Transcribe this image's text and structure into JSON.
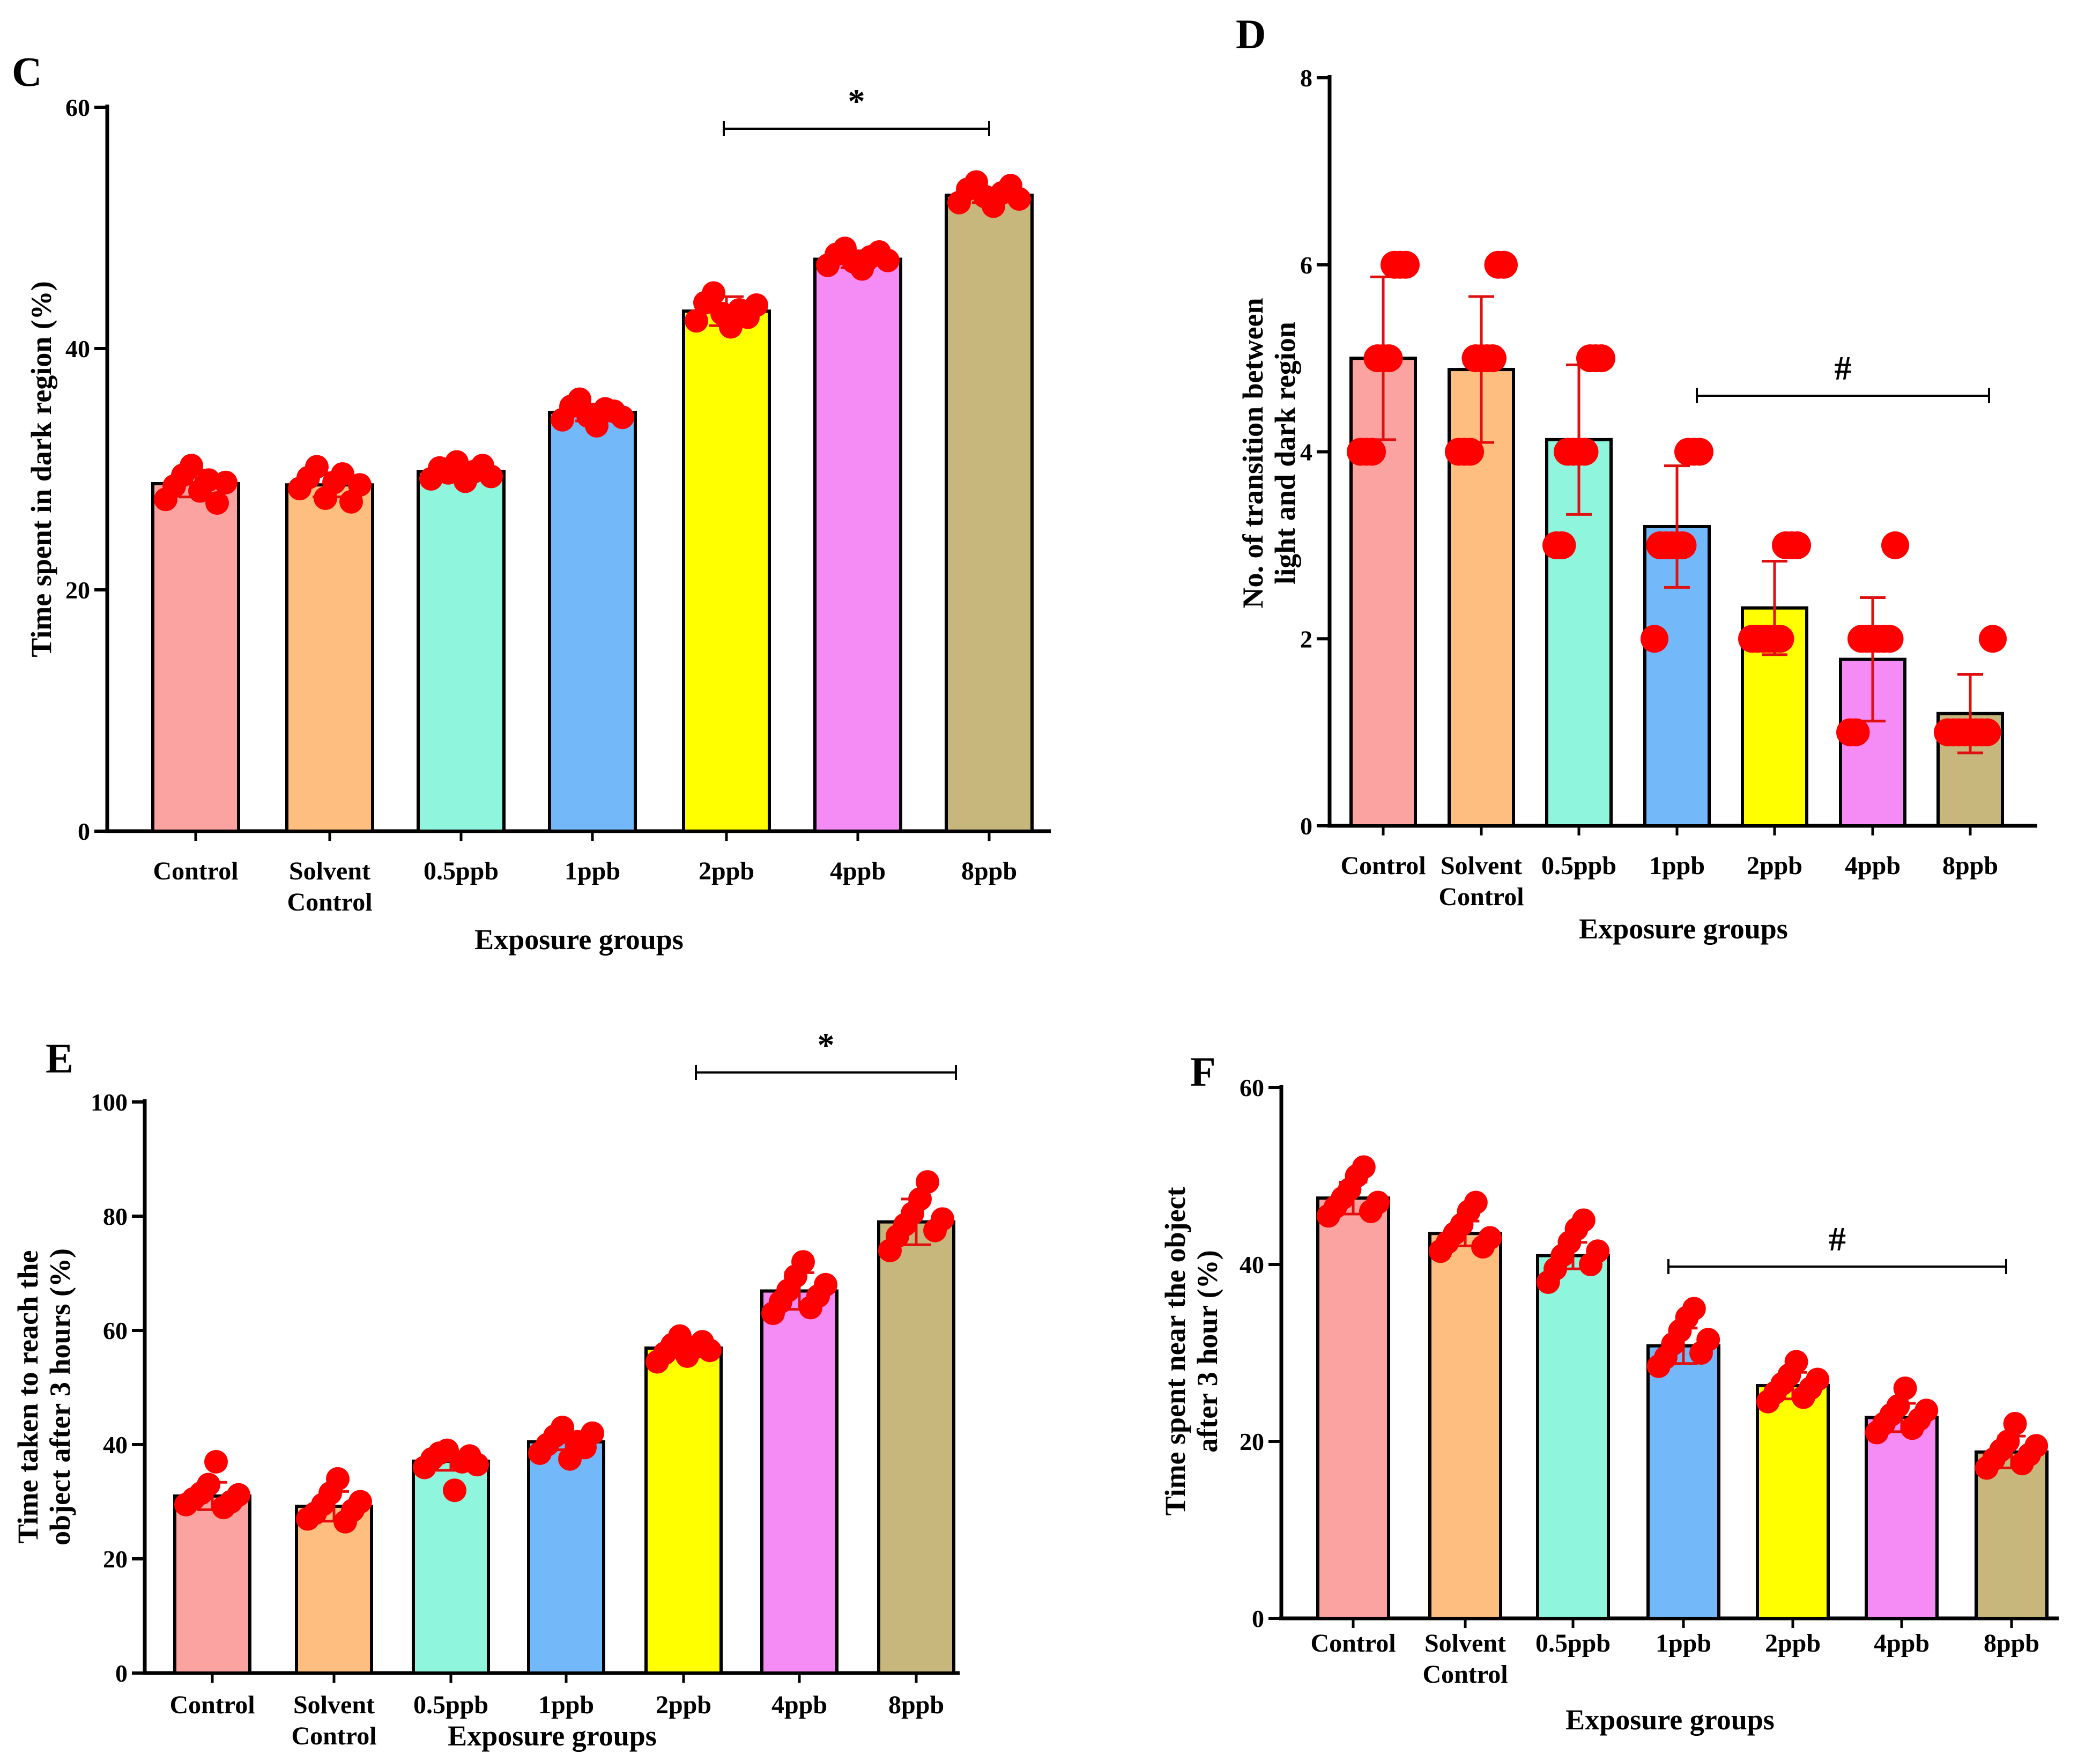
{
  "chart_data": [
    {
      "panel": "C",
      "type": "bar",
      "xlabel": "Exposure groups",
      "ylabel": "Time spent in dark region (%)",
      "categories": [
        [
          "Control"
        ],
        [
          "Solvent",
          "Control"
        ],
        [
          "0.5ppb"
        ],
        [
          "1ppb"
        ],
        [
          "2ppb"
        ],
        [
          "4ppb"
        ],
        [
          "8ppb"
        ]
      ],
      "values": [
        28.8,
        28.7,
        29.8,
        34.7,
        43.1,
        47.4,
        52.7
      ],
      "errors": [
        1.1,
        1.0,
        0.6,
        0.7,
        1.2,
        0.7,
        0.6
      ],
      "points": [
        [
          27.5,
          28.6,
          29.5,
          30.3,
          28.2,
          29.1,
          27.2,
          28.9
        ],
        [
          28.4,
          29.3,
          30.2,
          27.6,
          28.9,
          29.6,
          27.3,
          28.7
        ],
        [
          29.2,
          30.1,
          29.7,
          30.6,
          29.0,
          29.8,
          30.3,
          29.4
        ],
        [
          34.1,
          35.2,
          35.8,
          34.4,
          33.6,
          35.0,
          34.8,
          34.3
        ],
        [
          42.3,
          43.8,
          44.6,
          42.9,
          41.8,
          43.2,
          42.6,
          43.6
        ],
        [
          46.9,
          47.8,
          48.3,
          47.2,
          46.6,
          47.6,
          48.0,
          47.3
        ],
        [
          52.1,
          53.2,
          53.8,
          52.6,
          51.8,
          52.9,
          53.5,
          52.4
        ]
      ],
      "colors": [
        "#FBA3A0",
        "#FDBE80",
        "#8FF5DD",
        "#73B9FA",
        "#FFFF00",
        "#F58CF5",
        "#C7B77C"
      ],
      "yticks": [
        0,
        20,
        40,
        60
      ],
      "ylim": [
        0,
        60
      ],
      "significance": {
        "from": 4,
        "to": 6,
        "symbol": "*"
      }
    },
    {
      "panel": "D",
      "type": "bar",
      "xlabel": "Exposure groups",
      "ylabel": [
        "No. of transition between",
        "light and dark region"
      ],
      "categories": [
        [
          "Control"
        ],
        [
          "Solvent",
          "Control"
        ],
        [
          "0.5ppb"
        ],
        [
          "1ppb"
        ],
        [
          "2ppb"
        ],
        [
          "4ppb"
        ],
        [
          "8ppb"
        ]
      ],
      "values": [
        5.0,
        4.88,
        4.13,
        3.2,
        2.33,
        1.78,
        1.2
      ],
      "errors": [
        0.87,
        0.78,
        0.8,
        0.65,
        0.5,
        0.66,
        0.42
      ],
      "points": [
        [
          4,
          4,
          4,
          5,
          5,
          5,
          6,
          6,
          6
        ],
        [
          4,
          4,
          4,
          5,
          5,
          5,
          5,
          6,
          6
        ],
        [
          3,
          3,
          4,
          4,
          4,
          4,
          5,
          5,
          5
        ],
        [
          2,
          3,
          3,
          3,
          3,
          3,
          4,
          4,
          4
        ],
        [
          2,
          2,
          2,
          2,
          2,
          2,
          3,
          3,
          3
        ],
        [
          1,
          1,
          2,
          2,
          2,
          2,
          2,
          2,
          3
        ],
        [
          1,
          1,
          1,
          1,
          1,
          1,
          1,
          1,
          2
        ]
      ],
      "colors": [
        "#FBA3A0",
        "#FDBE80",
        "#8FF5DD",
        "#73B9FA",
        "#FFFF00",
        "#F58CF5",
        "#C7B77C"
      ],
      "yticks": [
        0,
        2,
        4,
        6,
        8
      ],
      "ylim": [
        0,
        8
      ],
      "significance": {
        "from": 3,
        "to": 6,
        "symbol": "#"
      }
    },
    {
      "panel": "E",
      "type": "bar",
      "xlabel": "Exposure groups",
      "ylabel": [
        "Time taken to reach the",
        "object after 3 hours (%)"
      ],
      "categories": [
        [
          "Control"
        ],
        [
          "Solvent",
          "Control"
        ],
        [
          "0.5ppb"
        ],
        [
          "1ppb"
        ],
        [
          "2ppb"
        ],
        [
          "4ppb"
        ],
        [
          "8ppb"
        ]
      ],
      "values": [
        31.0,
        29.2,
        37.1,
        40.5,
        56.9,
        66.9,
        79.0
      ],
      "errors": [
        2.4,
        2.6,
        1.6,
        1.4,
        1.6,
        3.2,
        4.0
      ],
      "points": [
        [
          29.5,
          30.5,
          31.5,
          33.0,
          37.0,
          29.0,
          30.0,
          31.2
        ],
        [
          27.0,
          28.0,
          29.5,
          31.5,
          34.0,
          26.5,
          28.5,
          30.0
        ],
        [
          36.0,
          37.5,
          38.5,
          39.0,
          32.0,
          37.0,
          38.0,
          36.5
        ],
        [
          38.5,
          40.0,
          41.5,
          43.0,
          37.5,
          40.5,
          39.5,
          42.0
        ],
        [
          54.5,
          56.0,
          57.5,
          59.0,
          55.5,
          57.0,
          58.0,
          56.5
        ],
        [
          63.0,
          65.0,
          67.0,
          69.5,
          72.0,
          64.0,
          66.0,
          68.0
        ],
        [
          74.0,
          76.5,
          78.5,
          80.5,
          83.0,
          86.0,
          77.5,
          79.5
        ]
      ],
      "colors": [
        "#FBA3A0",
        "#FDBE80",
        "#8FF5DD",
        "#73B9FA",
        "#FFFF00",
        "#F58CF5",
        "#C7B77C"
      ],
      "yticks": [
        0,
        20,
        40,
        60,
        80,
        100
      ],
      "ylim": [
        0,
        100
      ],
      "significance": {
        "from": 4,
        "to": 6,
        "symbol": "*"
      }
    },
    {
      "panel": "F",
      "type": "bar",
      "xlabel": "Exposure groups",
      "ylabel": [
        "Time spent near the object",
        "after 3 hour (%)"
      ],
      "categories": [
        [
          "Control"
        ],
        [
          "Solvent",
          "Control"
        ],
        [
          "0.5ppb"
        ],
        [
          "1ppb"
        ],
        [
          "2ppb"
        ],
        [
          "4ppb"
        ],
        [
          "8ppb"
        ]
      ],
      "values": [
        47.5,
        43.5,
        41.0,
        30.8,
        26.3,
        22.7,
        18.8
      ],
      "errors": [
        1.8,
        1.4,
        1.5,
        2.0,
        1.5,
        1.6,
        1.8
      ],
      "points": [
        [
          45.5,
          46.5,
          47.5,
          48.5,
          50.0,
          51.0,
          46.0,
          47.0
        ],
        [
          41.5,
          42.5,
          43.5,
          44.5,
          46.0,
          47.0,
          42.0,
          43.0
        ],
        [
          38.0,
          39.5,
          41.0,
          42.5,
          44.0,
          45.0,
          40.0,
          41.5
        ],
        [
          28.5,
          29.5,
          31.0,
          32.5,
          34.0,
          35.0,
          30.0,
          31.5
        ],
        [
          24.5,
          25.5,
          26.5,
          27.5,
          29.0,
          25.0,
          26.0,
          27.0
        ],
        [
          21.0,
          22.0,
          23.0,
          24.0,
          26.0,
          21.5,
          22.5,
          23.5
        ],
        [
          17.0,
          18.0,
          19.0,
          20.0,
          22.0,
          17.5,
          18.5,
          19.5
        ]
      ],
      "colors": [
        "#FBA3A0",
        "#FDBE80",
        "#8FF5DD",
        "#73B9FA",
        "#FFFF00",
        "#F58CF5",
        "#C7B77C"
      ],
      "yticks": [
        0,
        20,
        40,
        60
      ],
      "ylim": [
        0,
        60
      ],
      "significance": {
        "from": 3,
        "to": 6,
        "symbol": "#"
      }
    }
  ]
}
